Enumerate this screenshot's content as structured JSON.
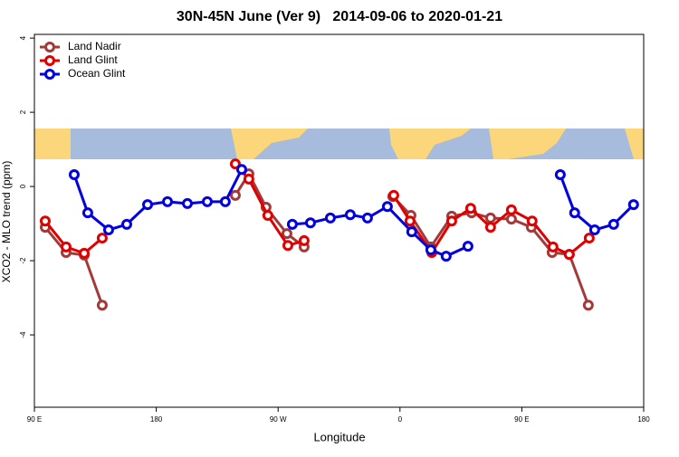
{
  "chart_data": {
    "type": "line",
    "title": "30N-45N June (Ver 9)   2014-09-06 to 2020-01-21",
    "x_label": "Longitude",
    "y_label": "XCO2 - MLO trend (ppm)",
    "xlim": [
      90,
      540
    ],
    "ylim": [
      -5.95,
      4.1
    ],
    "xticks": [
      {
        "value": 90,
        "label": "90 E"
      },
      {
        "value": 180,
        "label": "180"
      },
      {
        "value": 270,
        "label": "90 W"
      },
      {
        "value": 360,
        "label": "0"
      },
      {
        "value": 450,
        "label": "90 E"
      },
      {
        "value": 540,
        "label": "180"
      }
    ],
    "yticks": [
      -4,
      -2,
      0,
      2,
      4
    ],
    "legend": "top-left",
    "series": [
      {
        "name": "Land Nadir",
        "color": "#a33a3a",
        "x": [
          98,
          113.4,
          126.8,
          140.1,
          null,
          238.4,
          248.4,
          261.1,
          276.5,
          289.2,
          null,
          354.7,
          368.1,
          382.8,
          398.2,
          412.9,
          426.9,
          442.3,
          457.0,
          472.4,
          485.1,
          499.1
        ],
        "values": [
          -1.1,
          -1.78,
          -1.85,
          -3.2,
          null,
          -0.24,
          0.34,
          -0.56,
          -1.27,
          -1.63,
          null,
          -0.27,
          -0.78,
          -1.63,
          -0.8,
          -0.71,
          -0.85,
          -0.88,
          -1.1,
          -1.78,
          -1.83,
          -3.2
        ]
      },
      {
        "name": "Land Glint",
        "color": "#e00000",
        "x": [
          98,
          113.4,
          126.8,
          140.1,
          null,
          238.4,
          248.4,
          262.4,
          277.2,
          289.2,
          null,
          355.4,
          367.4,
          383.5,
          398.2,
          412.2,
          426.9,
          442.3,
          457.6,
          473,
          485,
          499.8
        ],
        "values": [
          -0.93,
          -1.63,
          -1.8,
          -1.39,
          null,
          0.61,
          0.2,
          -0.78,
          -1.59,
          -1.46,
          null,
          -0.24,
          -0.93,
          -1.78,
          -0.93,
          -0.59,
          -1.1,
          -0.63,
          -0.93,
          -1.63,
          -1.83,
          -1.39
        ]
      },
      {
        "name": "Ocean Glint",
        "color": "#0000e0",
        "x": [
          119.4,
          129.4,
          144.8,
          158.2,
          173.6,
          188.3,
          203,
          217.7,
          231,
          243.1,
          null,
          280.5,
          293.9,
          308.6,
          323.3,
          336,
          350.7,
          368.7,
          382.8,
          394.1,
          410.2,
          null,
          478.4,
          489,
          503.8,
          517.8,
          532.5
        ],
        "values": [
          0.32,
          -0.71,
          -1.17,
          -1.02,
          -0.49,
          -0.41,
          -0.46,
          -0.41,
          -0.41,
          0.46,
          null,
          -1.02,
          -0.98,
          -0.85,
          -0.76,
          -0.85,
          -0.54,
          -1.22,
          -1.71,
          -1.88,
          -1.61,
          null,
          0.32,
          -0.71,
          -1.17,
          -1.02,
          -0.49
        ]
      }
    ]
  }
}
